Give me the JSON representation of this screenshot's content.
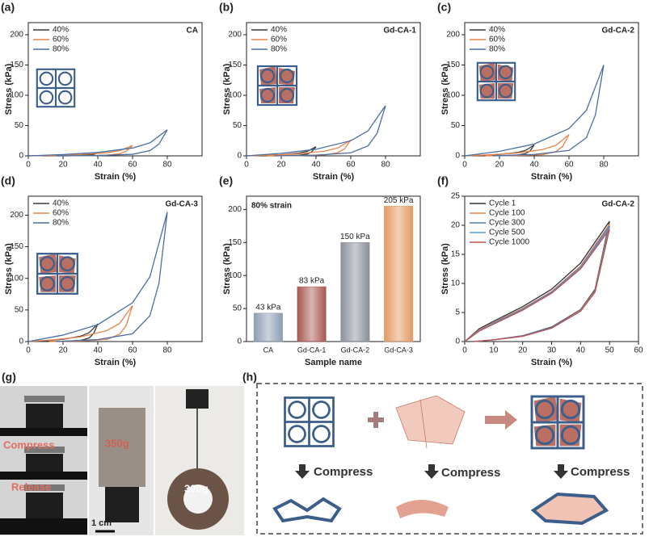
{
  "chart_data": [
    {
      "panel": "(a)",
      "type": "line",
      "title": "CA",
      "x_label": "Strain (%)",
      "y_label": "Stress (kPa)",
      "xlim": [
        0,
        100
      ],
      "xticks": [
        0,
        20,
        40,
        60,
        80
      ],
      "ylim": [
        0,
        220
      ],
      "yticks": [
        0,
        50,
        100,
        150,
        200
      ],
      "series": [
        {
          "name": "40%",
          "color": "#3b3b3b",
          "x": [
            0,
            10,
            20,
            30,
            35,
            40,
            37.6,
            35,
            30,
            20,
            8
          ],
          "values": [
            0,
            0.3,
            0.7,
            1.5,
            2.5,
            5,
            2.3,
            1,
            0.3,
            0.1,
            0
          ]
        },
        {
          "name": "60%",
          "color": "#e8844a",
          "x": [
            0,
            15,
            30,
            45,
            52.5,
            60,
            56.4,
            52.5,
            45,
            30,
            12
          ],
          "values": [
            0,
            0.9,
            2.2,
            5.1,
            8.5,
            17,
            7.7,
            3.4,
            1,
            0.3,
            0
          ]
        },
        {
          "name": "80%",
          "color": "#4a6fa5",
          "x": [
            0,
            20,
            40,
            60,
            70,
            80,
            75.2,
            70,
            60,
            40,
            16
          ],
          "values": [
            0,
            2.2,
            5.6,
            12.9,
            21.5,
            43,
            19.4,
            8.6,
            2.6,
            0.6,
            0
          ]
        }
      ]
    },
    {
      "panel": "(b)",
      "type": "line",
      "title": "Gd-CA-1",
      "x_label": "Strain (%)",
      "y_label": "Stress (kPa)",
      "xlim": [
        0,
        100
      ],
      "xticks": [
        0,
        20,
        40,
        60,
        80
      ],
      "ylim": [
        0,
        220
      ],
      "yticks": [
        0,
        50,
        100,
        150,
        200
      ],
      "series": [
        {
          "name": "40%",
          "color": "#3b3b3b",
          "x": [
            0,
            10,
            20,
            30,
            35,
            40,
            37.6,
            35,
            30,
            20,
            8
          ],
          "values": [
            0,
            0.8,
            2,
            4.5,
            7.5,
            15,
            6.8,
            3,
            0.9,
            0.2,
            0
          ]
        },
        {
          "name": "60%",
          "color": "#e8844a",
          "x": [
            0,
            15,
            30,
            45,
            52.5,
            60,
            56.4,
            52.5,
            45,
            30,
            12
          ],
          "values": [
            0,
            1.3,
            3.4,
            7.8,
            13,
            26,
            11.7,
            5.2,
            1.6,
            0.4,
            0
          ]
        },
        {
          "name": "80%",
          "color": "#4a6fa5",
          "x": [
            0,
            20,
            40,
            60,
            70,
            80,
            75.2,
            70,
            60,
            40,
            16
          ],
          "values": [
            0,
            4.2,
            10.8,
            24.9,
            41.5,
            83,
            37.4,
            16.6,
            5,
            1.2,
            0
          ]
        }
      ]
    },
    {
      "panel": "(c)",
      "type": "line",
      "title": "Gd-CA-2",
      "x_label": "Strain (%)",
      "y_label": "Stress (kPa)",
      "xlim": [
        0,
        100
      ],
      "xticks": [
        0,
        20,
        40,
        60,
        80
      ],
      "ylim": [
        0,
        220
      ],
      "yticks": [
        0,
        50,
        100,
        150,
        200
      ],
      "series": [
        {
          "name": "40%",
          "color": "#3b3b3b",
          "x": [
            0,
            10,
            20,
            30,
            35,
            40,
            37.6,
            35,
            30,
            20,
            8
          ],
          "values": [
            0,
            0.9,
            2.3,
            5.4,
            9,
            18,
            8.1,
            3.6,
            1.1,
            0.3,
            0
          ]
        },
        {
          "name": "60%",
          "color": "#e8844a",
          "x": [
            0,
            15,
            30,
            45,
            52.5,
            60,
            56.4,
            52.5,
            45,
            30,
            12
          ],
          "values": [
            0,
            1.8,
            4.6,
            10.5,
            17.5,
            35,
            15.8,
            7,
            2.1,
            0.5,
            0
          ]
        },
        {
          "name": "80%",
          "color": "#4a6fa5",
          "x": [
            0,
            20,
            40,
            60,
            70,
            80,
            75.2,
            70,
            60,
            40,
            16
          ],
          "values": [
            0,
            7.5,
            19.5,
            45,
            75,
            150,
            67.5,
            30,
            9,
            2.3,
            0
          ]
        }
      ]
    },
    {
      "panel": "(d)",
      "type": "line",
      "title": "Gd-CA-3",
      "x_label": "Strain (%)",
      "y_label": "Stress (kPa)",
      "xlim": [
        0,
        100
      ],
      "xticks": [
        0,
        20,
        40,
        60,
        80
      ],
      "ylim": [
        0,
        230
      ],
      "yticks": [
        0,
        50,
        100,
        150,
        200
      ],
      "series": [
        {
          "name": "40%",
          "color": "#3b3b3b",
          "x": [
            0,
            10,
            20,
            30,
            35,
            40,
            37.6,
            35,
            30,
            20,
            8
          ],
          "values": [
            0,
            1.4,
            3.6,
            8.4,
            14,
            28,
            12.6,
            5.6,
            1.7,
            0.4,
            0
          ]
        },
        {
          "name": "60%",
          "color": "#e8844a",
          "x": [
            0,
            15,
            30,
            45,
            52.5,
            60,
            56.4,
            52.5,
            45,
            30,
            12
          ],
          "values": [
            0,
            2.9,
            7.4,
            17.1,
            28.5,
            57,
            25.7,
            11.4,
            3.4,
            0.9,
            0
          ]
        },
        {
          "name": "80%",
          "color": "#4a6fa5",
          "x": [
            0,
            20,
            40,
            60,
            70,
            80,
            75.2,
            70,
            60,
            40,
            16
          ],
          "values": [
            0,
            10.3,
            26.7,
            61.5,
            102.5,
            205,
            92.3,
            41,
            12.3,
            3.1,
            0
          ]
        }
      ]
    },
    {
      "panel": "(e)",
      "type": "bar",
      "annotation": "80% strain",
      "x_label": "Sample name",
      "y_label": "Stress (kPa)",
      "ylim": [
        0,
        220
      ],
      "yticks": [
        0,
        50,
        100,
        150,
        200
      ],
      "categories": [
        "CA",
        "Gd-CA-1",
        "Gd-CA-2",
        "Gd-CA-3"
      ],
      "values": [
        43,
        83,
        150,
        205
      ],
      "value_labels": [
        "43 kPa",
        "83 kPa",
        "150 kPa",
        "205 kPa"
      ],
      "colors": [
        "#8c9db3",
        "#a8574f",
        "#8a8f9a",
        "#e39a62"
      ]
    },
    {
      "panel": "(f)",
      "type": "line",
      "title": "Gd-CA-2",
      "x_label": "Strain (%)",
      "y_label": "Stress (kPa)",
      "xlim": [
        0,
        60
      ],
      "xticks": [
        0,
        10,
        20,
        30,
        40,
        50,
        60
      ],
      "ylim": [
        0,
        25
      ],
      "yticks": [
        0,
        5,
        10,
        15,
        20,
        25
      ],
      "series": [
        {
          "name": "Cycle 1",
          "color": "#333333",
          "x": [
            0,
            5,
            10,
            20,
            30,
            40,
            50,
            45,
            40,
            30,
            20,
            10,
            3
          ],
          "values": [
            0,
            2.2,
            3.5,
            6,
            9,
            13.5,
            20.7,
            9,
            5.5,
            2.5,
            1,
            0.3,
            0
          ]
        },
        {
          "name": "Cycle 100",
          "color": "#e8844a",
          "x": [
            0,
            5,
            10,
            20,
            30,
            40,
            50,
            45,
            40,
            30,
            20,
            10,
            3
          ],
          "values": [
            0,
            2,
            3.3,
            5.7,
            8.6,
            13,
            20.2,
            8.8,
            5.4,
            2.4,
            1,
            0.3,
            0
          ]
        },
        {
          "name": "Cycle 300",
          "color": "#4f7fb8",
          "x": [
            0,
            5,
            10,
            20,
            30,
            40,
            50,
            45,
            40,
            30,
            20,
            10,
            3
          ],
          "values": [
            0,
            1.9,
            3.2,
            5.6,
            8.5,
            12.8,
            19.9,
            8.7,
            5.3,
            2.4,
            1,
            0.3,
            0
          ]
        },
        {
          "name": "Cycle 500",
          "color": "#5b9bd5",
          "x": [
            0,
            5,
            10,
            20,
            30,
            40,
            50,
            45,
            40,
            30,
            20,
            10,
            3
          ],
          "values": [
            0,
            1.9,
            3.1,
            5.5,
            8.4,
            12.7,
            19.6,
            8.6,
            5.3,
            2.3,
            0.9,
            0.3,
            0
          ]
        },
        {
          "name": "Cycle 1000",
          "color": "#c0504d",
          "x": [
            0,
            5,
            10,
            20,
            30,
            40,
            50,
            45,
            40,
            30,
            20,
            10,
            3
          ],
          "values": [
            0,
            1.8,
            3,
            5.4,
            8.3,
            12.5,
            19.3,
            8.5,
            5.2,
            2.3,
            0.9,
            0.3,
            0
          ]
        }
      ]
    }
  ],
  "panel_g": {
    "label": "(g)",
    "texts": [
      "Compress",
      "Release",
      "350g",
      "1 cm",
      "300g"
    ]
  },
  "panel_h": {
    "label": "(h)",
    "steps": [
      "Compress",
      "Compress",
      "Compress"
    ]
  }
}
